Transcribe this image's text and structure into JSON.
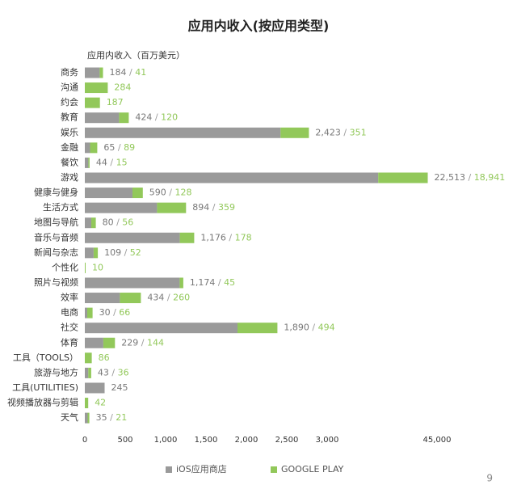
{
  "chart_data": {
    "type": "stacked-bar-horizontal",
    "title": "应用内收入(按应用类型)",
    "value_axis_label": "应用内收入（百万美元）",
    "categories": [
      "商务",
      "沟通",
      "约会",
      "教育",
      "娱乐",
      "金融",
      "餐饮",
      "游戏",
      "健康与健身",
      "生活方式",
      "地图与导航",
      "音乐与音频",
      "新闻与杂志",
      "个性化",
      "照片与视频",
      "效率",
      "电商",
      "社交",
      "体育",
      "工具（TOOLS）",
      "旅游与地方",
      "工具(UTILITIES)",
      "视频播放器与剪辑",
      "天气"
    ],
    "series": [
      {
        "name": "iOS应用商店",
        "color": "#9a9a9a",
        "values": [
          184,
          null,
          null,
          424,
          2423,
          65,
          44,
          22513,
          590,
          894,
          80,
          1176,
          109,
          null,
          1174,
          434,
          30,
          1890,
          229,
          null,
          43,
          245,
          null,
          35
        ],
        "value_labels": [
          "184",
          null,
          null,
          "424",
          "2,423",
          "65",
          "44",
          "22,513",
          "590",
          "894",
          "80",
          "1,176",
          "109",
          null,
          "1,174",
          "434",
          "30",
          "1,890",
          "229",
          null,
          "43",
          "245",
          null,
          "35"
        ]
      },
      {
        "name": "GOOGLE PLAY",
        "color": "#92c85a",
        "values": [
          41,
          284,
          187,
          120,
          351,
          89,
          15,
          18941,
          128,
          359,
          56,
          178,
          52,
          10,
          45,
          260,
          66,
          494,
          144,
          86,
          36,
          null,
          42,
          21
        ],
        "value_labels": [
          "41",
          "284",
          "187",
          "120",
          "351",
          "89",
          "15",
          "18,941",
          "128",
          "359",
          "56",
          "178",
          "52",
          "10",
          "45",
          "260",
          "66",
          "494",
          "144",
          "86",
          "36",
          null,
          "42",
          "21"
        ]
      }
    ],
    "separator": " / ",
    "xlim": [
      0,
      45000
    ],
    "xticks": [
      0,
      500,
      {
        "value": 1000,
        "label": "1,000"
      },
      {
        "value": 1500,
        "label": "1,500"
      },
      {
        "value": 2000,
        "label": "2,000"
      },
      {
        "value": 2500,
        "label": "2,500"
      },
      {
        "value": 3000,
        "label": "3,000"
      },
      {
        "value": 45000,
        "label": "45,000"
      }
    ],
    "axis_break": true,
    "grid": false,
    "legend_position": "bottom",
    "page_number": "9"
  }
}
